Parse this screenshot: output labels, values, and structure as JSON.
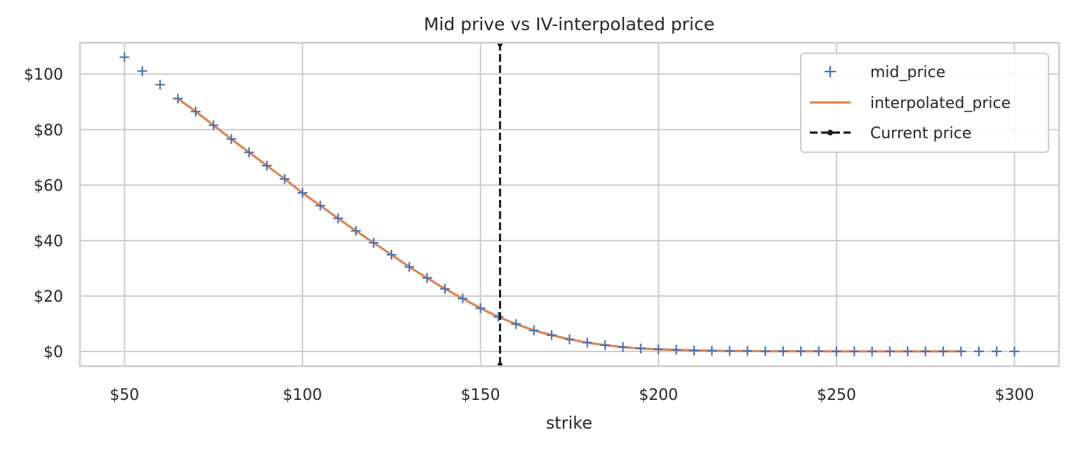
{
  "chart_data": {
    "type": "line",
    "title": "Mid prive vs IV-interpolated price",
    "xlabel": "strike",
    "ylabel": "",
    "xlim": [
      37.5,
      312.5
    ],
    "ylim": [
      -5.3,
      111.3
    ],
    "x_ticks": [
      50,
      100,
      150,
      200,
      250,
      300
    ],
    "x_tick_labels": [
      "$50",
      "$100",
      "$150",
      "$200",
      "$250",
      "$300"
    ],
    "y_ticks": [
      0,
      20,
      40,
      60,
      80,
      100
    ],
    "y_tick_labels": [
      "$0",
      "$20",
      "$40",
      "$60",
      "$80",
      "$100"
    ],
    "grid": true,
    "legend_position": "top-right",
    "series": [
      {
        "name": "mid_price",
        "kind": "marker",
        "marker": "+",
        "color": "#4c72b0",
        "x": [
          50,
          55,
          60,
          65,
          70,
          75,
          80,
          85,
          90,
          95,
          100,
          105,
          110,
          115,
          120,
          125,
          130,
          135,
          140,
          145,
          150,
          155,
          160,
          165,
          170,
          175,
          180,
          185,
          190,
          195,
          200,
          205,
          210,
          215,
          220,
          225,
          230,
          235,
          240,
          245,
          250,
          255,
          260,
          265,
          270,
          275,
          280,
          285,
          290,
          295,
          300
        ],
        "values": [
          106.1,
          101.1,
          96.2,
          91.2,
          86.5,
          81.6,
          76.6,
          71.8,
          67.0,
          62.2,
          57.2,
          52.6,
          48.0,
          43.5,
          39.2,
          34.9,
          30.5,
          26.5,
          22.6,
          19.1,
          15.6,
          12.5,
          9.9,
          7.6,
          5.9,
          4.4,
          3.2,
          2.3,
          1.6,
          1.1,
          0.8,
          0.6,
          0.4,
          0.3,
          0.2,
          0.2,
          0.1,
          0.1,
          0.1,
          0.1,
          0.05,
          0.05,
          0.05,
          0.05,
          0.05,
          0.05,
          0.05,
          0.05,
          0.05,
          0.05,
          0.05
        ]
      },
      {
        "name": "interpolated_price",
        "kind": "line",
        "color": "#dd8452",
        "x": [
          65,
          70,
          75,
          80,
          85,
          90,
          95,
          100,
          105,
          110,
          115,
          120,
          125,
          130,
          135,
          140,
          145,
          150,
          155,
          160,
          165,
          170,
          175,
          180,
          185,
          190,
          195,
          200,
          205,
          210,
          215,
          220,
          225,
          230,
          235,
          240,
          245,
          250,
          255,
          260,
          265,
          270,
          275,
          280,
          285
        ],
        "values": [
          91.2,
          86.5,
          81.6,
          76.6,
          71.8,
          67.0,
          62.2,
          57.2,
          52.6,
          48.0,
          43.5,
          39.2,
          34.9,
          30.5,
          26.5,
          22.6,
          19.1,
          15.6,
          12.5,
          9.9,
          7.6,
          5.9,
          4.4,
          3.2,
          2.3,
          1.6,
          1.1,
          0.8,
          0.6,
          0.4,
          0.3,
          0.2,
          0.2,
          0.1,
          0.1,
          0.1,
          0.1,
          0.05,
          0.05,
          0.05,
          0.05,
          0.05,
          0.05,
          0.05,
          0.05
        ]
      },
      {
        "name": "Current price",
        "kind": "vline",
        "color": "#1a1a1a",
        "x": 155.5
      }
    ],
    "colors": {
      "background": "#ffffff",
      "grid": "#cccccc",
      "spine": "#cccccc",
      "mid_price": "#4c72b0",
      "interpolated_price": "#dd8452",
      "current_price": "#1a1a1a"
    }
  }
}
